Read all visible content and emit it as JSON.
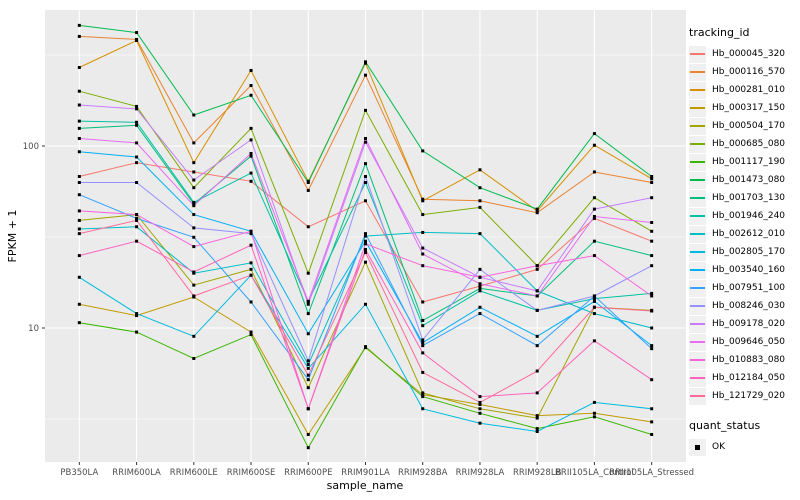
{
  "figure": {
    "x_axis_title": "sample_name",
    "y_axis_title": "FPKM + 1",
    "legend_tracking_title": "tracking_id",
    "legend_quant_title": "quant_status",
    "legend_quant_ok": "OK"
  },
  "chart_data": {
    "type": "line",
    "title": "",
    "xlabel": "sample_name",
    "ylabel": "FPKM + 1",
    "yscale": "log10",
    "ylim": [
      1.8,
      560
    ],
    "y_major_ticks": [
      10,
      100
    ],
    "y_minor_ticks": [
      3.162,
      31.62,
      316.2
    ],
    "grid": "on",
    "panel_bg": "#EBEBEB",
    "grid_color": "#FFFFFF",
    "point_color": "#000000",
    "legend_position": "right",
    "legend_key_bg": "#F0F0F0",
    "quant_status_values": [
      "OK"
    ],
    "categories": [
      "PB350LA",
      "RRIM600LA",
      "RRIM600LE",
      "RRIM600SE",
      "RRIM600PE",
      "RRIM901LA",
      "RRIM928BA",
      "RRIM928LA",
      "RRIM928LB",
      "RRII105LA_Control",
      "RRII105LA_Stressed"
    ],
    "series": [
      {
        "name": "Hb_000045_320",
        "color": "#F8766D",
        "values": [
          68,
          81,
          72,
          64,
          36,
          50,
          13.9,
          17,
          21,
          40,
          30
        ]
      },
      {
        "name": "Hb_000116_570",
        "color": "#EA8331",
        "values": [
          400,
          385,
          104,
          215,
          57,
          245,
          51,
          50,
          43,
          72,
          63
        ]
      },
      {
        "name": "Hb_000281_010",
        "color": "#D89000",
        "values": [
          270,
          380,
          81,
          260,
          64,
          285,
          50,
          74,
          44,
          101,
          66
        ]
      },
      {
        "name": "Hb_000317_150",
        "color": "#C09B00",
        "values": [
          13.5,
          11.7,
          14.8,
          9.5,
          2.6,
          7.8,
          4.3,
          3.8,
          3.3,
          3.4,
          3.05
        ]
      },
      {
        "name": "Hb_000504_170",
        "color": "#A3A500",
        "values": [
          39,
          42,
          17.2,
          21,
          4.7,
          23,
          4.4,
          3.6,
          3.2,
          13,
          12.5
        ]
      },
      {
        "name": "Hb_000685_080",
        "color": "#7CAE00",
        "values": [
          200,
          165,
          59,
          125,
          20,
          157,
          42,
          46,
          22,
          52,
          34
        ]
      },
      {
        "name": "Hb_001117_190",
        "color": "#39B600",
        "values": [
          10.7,
          9.5,
          6.8,
          9.2,
          2.2,
          7.9,
          4.2,
          3.4,
          2.8,
          3.25,
          2.6
        ]
      },
      {
        "name": "Hb_001473_080",
        "color": "#00BB4E",
        "values": [
          460,
          420,
          148,
          190,
          63,
          290,
          94,
          59,
          45,
          117,
          68
        ]
      },
      {
        "name": "Hb_001703_130",
        "color": "#00BF7D",
        "values": [
          125,
          130,
          48,
          88,
          12,
          80,
          11,
          16.5,
          15,
          30,
          25
        ]
      },
      {
        "name": "Hb_001946_240",
        "color": "#00C1A3",
        "values": [
          137,
          135,
          49,
          71,
          14,
          63,
          10.3,
          16,
          12.5,
          14.5,
          15.5
        ]
      },
      {
        "name": "Hb_002612_010",
        "color": "#00BFC4",
        "values": [
          35,
          36,
          20,
          22.8,
          6.3,
          32,
          33.5,
          33,
          16,
          12,
          10
        ]
      },
      {
        "name": "Hb_002805_170",
        "color": "#00BAE0",
        "values": [
          19,
          12,
          9.0,
          19.5,
          6.0,
          13.5,
          3.6,
          3.0,
          2.7,
          3.9,
          3.6
        ]
      },
      {
        "name": "Hb_003540_160",
        "color": "#00B0F6",
        "values": [
          93,
          87,
          42,
          34,
          9.3,
          30,
          8.3,
          13,
          9,
          14,
          8.0
        ]
      },
      {
        "name": "Hb_007951_100",
        "color": "#35A2FF",
        "values": [
          54,
          40,
          31.5,
          13.9,
          5.2,
          33,
          8.0,
          12,
          8,
          15,
          7.7
        ]
      },
      {
        "name": "Hb_008246_030",
        "color": "#9590FF",
        "values": [
          63,
          63,
          35.5,
          33,
          6.6,
          68,
          8.6,
          21,
          12.5,
          15,
          22
        ]
      },
      {
        "name": "Hb_009178_020",
        "color": "#C77CFF",
        "values": [
          168,
          160,
          65,
          108,
          13.5,
          105,
          27.5,
          19,
          16,
          45,
          52
        ]
      },
      {
        "name": "Hb_009646_050",
        "color": "#E76BF3",
        "values": [
          110,
          104,
          47,
          91,
          14,
          110,
          25.5,
          17.5,
          15,
          41,
          38
        ]
      },
      {
        "name": "Hb_010883_080",
        "color": "#FA62DB",
        "values": [
          44,
          42,
          28,
          34,
          3.6,
          29,
          22,
          19,
          22,
          25,
          15
        ]
      },
      {
        "name": "Hb_012184_050",
        "color": "#FF62BC",
        "values": [
          25,
          30,
          20.3,
          28.5,
          3.6,
          27,
          7.3,
          4.2,
          4.4,
          8.5,
          5.2
        ]
      },
      {
        "name": "Hb_121729_020",
        "color": "#FF6A98",
        "values": [
          33,
          39,
          15,
          19.5,
          5.5,
          26,
          5.7,
          3.9,
          5.8,
          13,
          12.4
        ]
      }
    ]
  }
}
